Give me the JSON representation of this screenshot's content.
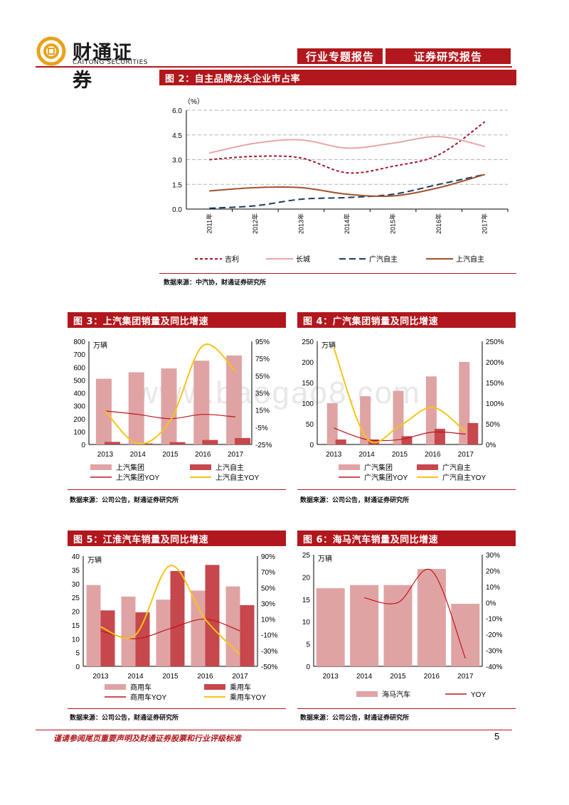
{
  "header": {
    "company_cn": "财通证券",
    "company_en": "CAITONG SECURITIES",
    "tab_left": "行业专题报告",
    "tab_right": "证券研究报告"
  },
  "watermark": "www.baogao8.com",
  "colors": {
    "accent": "#b1171c",
    "bar_light": "#e0a3a3",
    "bar_dark": "#c6474c",
    "yellow": "#f5c518",
    "navy": "#1f3a5f",
    "brown": "#a0522d",
    "pink": "#e8a6a6",
    "dark_red": "#a3182a"
  },
  "fig2": {
    "title": "图 2：自主品牌龙头企业市占率",
    "source": "数据来源：中汽协，财通证券研究所",
    "chart_data": {
      "type": "line",
      "unit": "（%）",
      "categories": [
        "2011年",
        "2012年",
        "2013年",
        "2014年",
        "2015年",
        "2016年",
        "2017年"
      ],
      "ylim": [
        0,
        6
      ],
      "yticks": [
        "6.0",
        "4.5",
        "3.0",
        "1.5",
        "0.0"
      ],
      "series": [
        {
          "name": "吉利",
          "values": [
            3.0,
            3.2,
            3.1,
            2.2,
            2.6,
            3.3,
            5.3
          ]
        },
        {
          "name": "长城",
          "values": [
            3.4,
            4.0,
            4.2,
            3.7,
            4.0,
            4.4,
            3.8
          ]
        },
        {
          "name": "广汽自主",
          "values": [
            0.05,
            0.2,
            0.6,
            0.7,
            0.9,
            1.5,
            2.1
          ]
        },
        {
          "name": "上汽自主",
          "values": [
            1.1,
            1.3,
            1.3,
            0.9,
            0.8,
            1.3,
            2.1
          ]
        }
      ]
    }
  },
  "fig3": {
    "title": "图 3：上汽集团销量及同比增速",
    "source": "数据来源：公司公告，财通证券研究所",
    "chart_data": {
      "type": "bar",
      "unit": "万辆",
      "categories": [
        "2013",
        "2014",
        "2015",
        "2016",
        "2017"
      ],
      "ylim": [
        0,
        800
      ],
      "yticks": [
        "800",
        "700",
        "600",
        "500",
        "400",
        "300",
        "200",
        "100",
        "0"
      ],
      "y2lim": [
        -25,
        95
      ],
      "y2ticks": [
        "95%",
        "75%",
        "55%",
        "35%",
        "15%",
        "-5%",
        "-25%"
      ],
      "series": [
        {
          "name": "上汽集团",
          "values": [
            510,
            560,
            590,
            650,
            690
          ]
        },
        {
          "name": "上汽自主",
          "values": [
            20,
            8,
            18,
            35,
            50
          ]
        },
        {
          "name": "上汽集团YOY",
          "values": [
            14,
            10,
            5,
            10,
            7
          ]
        },
        {
          "name": "上汽自主YOY",
          "values": [
            14,
            -24,
            3,
            90,
            60
          ]
        }
      ]
    }
  },
  "fig4": {
    "title": "图 4：广汽集团销量及同比增速",
    "source": "数据来源：公司公告，财通证券研究所",
    "chart_data": {
      "type": "bar",
      "unit": "万辆",
      "categories": [
        "2013",
        "2014",
        "2015",
        "2016",
        "2017"
      ],
      "ylim": [
        0,
        250
      ],
      "yticks": [
        "250",
        "200",
        "150",
        "100",
        "50",
        "0"
      ],
      "y2lim": [
        0,
        250
      ],
      "y2ticks": [
        "250%",
        "200%",
        "150%",
        "100%",
        "50%",
        "0%"
      ],
      "series": [
        {
          "name": "广汽集团",
          "values": [
            100,
            117,
            130,
            165,
            200
          ]
        },
        {
          "name": "广汽自主",
          "values": [
            12,
            12,
            20,
            38,
            52
          ]
        },
        {
          "name": "广汽集团YOY",
          "values": [
            40,
            12,
            12,
            30,
            25
          ]
        },
        {
          "name": "广汽自主YOY",
          "values": [
            235,
            15,
            45,
            90,
            30
          ]
        }
      ]
    }
  },
  "fig5": {
    "title": "图 5：江淮汽车销量及同比增速",
    "source": "数据来源：公司公告，财通证券研究所",
    "chart_data": {
      "type": "bar",
      "unit": "万辆",
      "categories": [
        "2013",
        "2014",
        "2015",
        "2016",
        "2017"
      ],
      "ylim": [
        0,
        40
      ],
      "yticks": [
        "40",
        "35",
        "30",
        "25",
        "20",
        "15",
        "10",
        "5",
        "0"
      ],
      "y2lim": [
        -50,
        90
      ],
      "y2ticks": [
        "90%",
        "70%",
        "50%",
        "30%",
        "10%",
        "-10%",
        "-30%",
        "-50%"
      ],
      "series": [
        {
          "name": "商用车",
          "values": [
            29.5,
            25.3,
            24.2,
            27.5,
            29.0
          ]
        },
        {
          "name": "乘用车",
          "values": [
            20.3,
            19.6,
            34.6,
            36.8,
            22.2
          ]
        },
        {
          "name": "商用车YOY",
          "values": [
            -5,
            -15,
            -2,
            10,
            -5
          ]
        },
        {
          "name": "乘用车YOY",
          "values": [
            0,
            -10,
            78,
            10,
            -35
          ]
        }
      ]
    }
  },
  "fig6": {
    "title": "图 6：海马汽车销量及同比增速",
    "source": "数据来源：公司公告，财通证券研究所",
    "chart_data": {
      "type": "bar",
      "unit": "万辆",
      "categories": [
        "2013",
        "2014",
        "2015",
        "2016",
        "2017"
      ],
      "ylim": [
        0,
        25
      ],
      "yticks": [
        "25",
        "20",
        "15",
        "10",
        "5",
        "0"
      ],
      "y2lim": [
        -40,
        30
      ],
      "y2ticks": [
        "30%",
        "20%",
        "10%",
        "0%",
        "-10%",
        "-20%",
        "-30%",
        "-40%"
      ],
      "series": [
        {
          "name": "海马汽车",
          "values": [
            17.5,
            18.2,
            18.2,
            21.8,
            14.0
          ]
        },
        {
          "name": "YOY",
          "values": [
            null,
            3,
            0,
            20,
            -35
          ]
        }
      ]
    }
  },
  "footer": {
    "disclaimer": "谨请参阅尾页重要声明及财通证券股票和行业评级标准",
    "page": "5"
  }
}
